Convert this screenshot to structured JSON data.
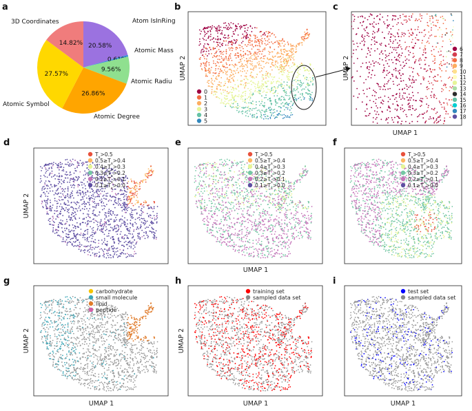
{
  "panel_labels": [
    "a",
    "b",
    "c",
    "d",
    "e",
    "f",
    "g",
    "h",
    "i"
  ],
  "chart_data": [
    {
      "panel": "a",
      "type": "pie",
      "title": "",
      "labels": [
        "Atom IsInRing",
        "Atomic Mass",
        "Atomic Radiu",
        "Atomic Degree",
        "Atomic Symbol",
        "3D Coordinates"
      ],
      "values": [
        20.58,
        0.61,
        9.56,
        26.86,
        27.57,
        14.82
      ],
      "value_labels": [
        "20.58%",
        "0.61%",
        "9.56%",
        "26.86%",
        "27.57%",
        "14.82%"
      ],
      "colors": [
        "#9b72e0",
        "#3a8fd8",
        "#8fe08f",
        "#ffa500",
        "#ffd800",
        "#f07c7c"
      ]
    },
    {
      "panel": "b",
      "type": "scatter",
      "xlabel": "",
      "ylabel": "UMAP 2",
      "legend_title": "",
      "legend_entries": [
        "0",
        "1",
        "2",
        "3",
        "4",
        "5"
      ],
      "legend_colors": [
        "#9e0142",
        "#f46d43",
        "#fdae61",
        "#e6f598",
        "#66c2a5",
        "#3288bd"
      ],
      "annotation": "circled region zoomed in panel c"
    },
    {
      "panel": "c",
      "type": "scatter",
      "xlabel": "UMAP 1",
      "ylabel": "UMAP 2",
      "legend_entries": [
        "6",
        "7",
        "8",
        "9",
        "10",
        "11",
        "12",
        "13",
        "14",
        "15",
        "16",
        "17",
        "18"
      ],
      "legend_colors": [
        "#9e0142",
        "#d53e4f",
        "#f46d43",
        "#fdae61",
        "#fee08b",
        "#ffffbf",
        "#e6f598",
        "#abdda4",
        "#2b2b2b",
        "#66c2a5",
        "#00ced1",
        "#3288bd",
        "#5e4fa2"
      ]
    },
    {
      "panel": "d",
      "type": "scatter",
      "xlabel": "",
      "ylabel": "UMAP 2",
      "legend_entries": [
        "T_s>0.5",
        "0.5≥T_s>0.4",
        "0.4≥T_s>0.3",
        "0.3≥T_s>0.2",
        "0.2≥T_s>0.1",
        "0.1≥T_s>0.0"
      ],
      "legend_colors": [
        "#e8513c",
        "#fdb863",
        "#e6f598",
        "#74c7a4",
        "#c475b9",
        "#5e4fa2"
      ]
    },
    {
      "panel": "e",
      "type": "scatter",
      "xlabel": "UMAP 1",
      "ylabel": "",
      "legend_entries": [
        "T_s>0.5",
        "0.5≥T_s>0.4",
        "0.4≥T_s>0.3",
        "0.3≥T_s>0.2",
        "0.2≥T_s>0.1",
        "0.1≥T_s>0.0"
      ],
      "legend_colors": [
        "#e8513c",
        "#fdb863",
        "#e6f598",
        "#74c7a4",
        "#c475b9",
        "#5e4fa2"
      ]
    },
    {
      "panel": "f",
      "type": "scatter",
      "xlabel": "",
      "ylabel": "",
      "legend_entries": [
        "T_s>0.5",
        "0.5≥T_s>0.4",
        "0.4≥T_s>0.3",
        "0.3≥T_s>0.2",
        "0.2≥T_s>0.1",
        "0.1≥T_s>0.0"
      ],
      "legend_colors": [
        "#e8513c",
        "#fdb863",
        "#e6f598",
        "#74c7a4",
        "#c475b9",
        "#5e4fa2"
      ]
    },
    {
      "panel": "g",
      "type": "scatter",
      "xlabel": "UMAP 1",
      "ylabel": "UMAP 2",
      "legend_entries": [
        "carbohydrate",
        "small molecule",
        "lipid",
        "peptide"
      ],
      "legend_colors": [
        "#f5c400",
        "#3fa7b8",
        "#e07b2a",
        "#d35fa8"
      ]
    },
    {
      "panel": "h",
      "type": "scatter",
      "xlabel": "UMAP 1",
      "ylabel": "UMAP 2",
      "legend_entries": [
        "training set",
        "sampled data set"
      ],
      "legend_colors": [
        "#ff0000",
        "#8a8a8a"
      ]
    },
    {
      "panel": "i",
      "type": "scatter",
      "xlabel": "UMAP 1",
      "ylabel": "",
      "legend_entries": [
        "test set",
        "sampled data set"
      ],
      "legend_colors": [
        "#0000ff",
        "#8a8a8a"
      ]
    }
  ]
}
